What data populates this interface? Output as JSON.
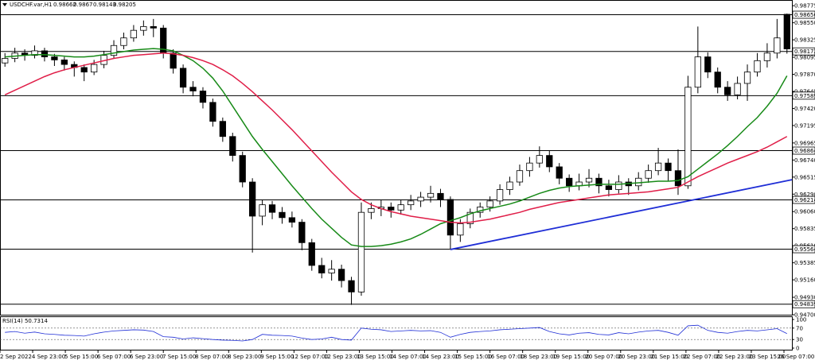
{
  "chart_data": {
    "type": "candlestick",
    "symbol": "USDCHF.var,H1",
    "candles": [
      [
        0.9802,
        0.9815,
        0.9797,
        0.9808
      ],
      [
        0.9808,
        0.9822,
        0.9803,
        0.9815
      ],
      [
        0.9815,
        0.982,
        0.9805,
        0.9812
      ],
      [
        0.9812,
        0.9825,
        0.9808,
        0.9818
      ],
      [
        0.9818,
        0.9822,
        0.9804,
        0.981
      ],
      [
        0.981,
        0.9814,
        0.9798,
        0.9806
      ],
      [
        0.9806,
        0.981,
        0.9792,
        0.98
      ],
      [
        0.98,
        0.9804,
        0.9784,
        0.9796
      ],
      [
        0.9796,
        0.98,
        0.9778,
        0.979
      ],
      [
        0.979,
        0.9806,
        0.9786,
        0.98
      ],
      [
        0.98,
        0.9818,
        0.9795,
        0.9812
      ],
      [
        0.9812,
        0.9832,
        0.9808,
        0.9825
      ],
      [
        0.9825,
        0.9842,
        0.982,
        0.9835
      ],
      [
        0.9835,
        0.9852,
        0.983,
        0.9845
      ],
      [
        0.9845,
        0.9858,
        0.9838,
        0.985
      ],
      [
        0.985,
        0.986,
        0.9836,
        0.9848
      ],
      [
        0.9848,
        0.9852,
        0.9808,
        0.9815
      ],
      [
        0.9815,
        0.982,
        0.9788,
        0.9795
      ],
      [
        0.9795,
        0.98,
        0.9762,
        0.977
      ],
      [
        0.977,
        0.9778,
        0.9758,
        0.9765
      ],
      [
        0.9765,
        0.977,
        0.9742,
        0.975
      ],
      [
        0.975,
        0.9755,
        0.9718,
        0.9725
      ],
      [
        0.9725,
        0.973,
        0.9698,
        0.9705
      ],
      [
        0.9705,
        0.971,
        0.9672,
        0.968
      ],
      [
        0.968,
        0.9685,
        0.9638,
        0.9645
      ],
      [
        0.9645,
        0.965,
        0.9552,
        0.96
      ],
      [
        0.96,
        0.9622,
        0.9588,
        0.9615
      ],
      [
        0.9615,
        0.962,
        0.9596,
        0.9605
      ],
      [
        0.9605,
        0.9612,
        0.959,
        0.9598
      ],
      [
        0.9598,
        0.9606,
        0.9585,
        0.9592
      ],
      [
        0.9592,
        0.9596,
        0.9555,
        0.9565
      ],
      [
        0.9565,
        0.957,
        0.9528,
        0.9535
      ],
      [
        0.9535,
        0.9545,
        0.9518,
        0.9525
      ],
      [
        0.9525,
        0.9542,
        0.9515,
        0.953
      ],
      [
        0.953,
        0.9536,
        0.9506,
        0.9515
      ],
      [
        0.9515,
        0.952,
        0.9483,
        0.95
      ],
      [
        0.95,
        0.9618,
        0.9495,
        0.9605
      ],
      [
        0.9605,
        0.9618,
        0.9596,
        0.961
      ],
      [
        0.961,
        0.9622,
        0.96,
        0.9612
      ],
      [
        0.9612,
        0.9618,
        0.9598,
        0.9608
      ],
      [
        0.9608,
        0.9622,
        0.9602,
        0.9615
      ],
      [
        0.9615,
        0.9628,
        0.9608,
        0.962
      ],
      [
        0.962,
        0.9632,
        0.9612,
        0.9625
      ],
      [
        0.9625,
        0.964,
        0.9618,
        0.963
      ],
      [
        0.963,
        0.9636,
        0.9612,
        0.9622
      ],
      [
        0.9622,
        0.9626,
        0.9556,
        0.9575
      ],
      [
        0.9575,
        0.9596,
        0.9566,
        0.959
      ],
      [
        0.959,
        0.961,
        0.9584,
        0.9605
      ],
      [
        0.9605,
        0.9618,
        0.9598,
        0.9612
      ],
      [
        0.9612,
        0.9626,
        0.9606,
        0.962
      ],
      [
        0.962,
        0.9642,
        0.9615,
        0.9635
      ],
      [
        0.9635,
        0.9652,
        0.9628,
        0.9645
      ],
      [
        0.9645,
        0.9668,
        0.964,
        0.966
      ],
      [
        0.966,
        0.9678,
        0.9652,
        0.967
      ],
      [
        0.967,
        0.9692,
        0.9664,
        0.968
      ],
      [
        0.968,
        0.9686,
        0.9658,
        0.9665
      ],
      [
        0.9665,
        0.967,
        0.9642,
        0.965
      ],
      [
        0.965,
        0.9655,
        0.9632,
        0.964
      ],
      [
        0.964,
        0.9656,
        0.9634,
        0.9645
      ],
      [
        0.9645,
        0.9662,
        0.9638,
        0.965
      ],
      [
        0.965,
        0.9656,
        0.963,
        0.964
      ],
      [
        0.964,
        0.9648,
        0.9626,
        0.9635
      ],
      [
        0.9635,
        0.9654,
        0.963,
        0.9645
      ],
      [
        0.9645,
        0.965,
        0.9628,
        0.964
      ],
      [
        0.964,
        0.9658,
        0.9634,
        0.965
      ],
      [
        0.965,
        0.9668,
        0.9644,
        0.966
      ],
      [
        0.966,
        0.969,
        0.9654,
        0.967
      ],
      [
        0.967,
        0.9676,
        0.9646,
        0.966
      ],
      [
        0.966,
        0.9688,
        0.9628,
        0.964
      ],
      [
        0.964,
        0.9785,
        0.9636,
        0.977
      ],
      [
        0.977,
        0.985,
        0.9762,
        0.981
      ],
      [
        0.981,
        0.9816,
        0.9782,
        0.979
      ],
      [
        0.979,
        0.9796,
        0.9762,
        0.977
      ],
      [
        0.977,
        0.9778,
        0.9752,
        0.976
      ],
      [
        0.976,
        0.9784,
        0.9754,
        0.9775
      ],
      [
        0.9775,
        0.98,
        0.9752,
        0.979
      ],
      [
        0.979,
        0.9815,
        0.9784,
        0.9805
      ],
      [
        0.9805,
        0.9828,
        0.9796,
        0.9815
      ],
      [
        0.9815,
        0.986,
        0.9808,
        0.9835
      ],
      [
        0.98662,
        0.9867,
        0.98143,
        0.98205
      ]
    ],
    "ylim": [
      0.947,
      0.9885
    ],
    "yticks": [
      {
        "value": 0.98775,
        "label": "0.98775"
      },
      {
        "value": 0.9855,
        "label": "0.98550"
      },
      {
        "value": 0.98325,
        "label": "0.98325"
      },
      {
        "value": 0.98095,
        "label": "0.98095"
      },
      {
        "value": 0.9787,
        "label": "0.97870"
      },
      {
        "value": 0.97645,
        "label": "0.97645"
      },
      {
        "value": 0.9742,
        "label": "0.97420"
      },
      {
        "value": 0.97195,
        "label": "0.97195"
      },
      {
        "value": 0.96965,
        "label": "0.96965"
      },
      {
        "value": 0.9674,
        "label": "0.96740"
      },
      {
        "value": 0.96515,
        "label": "0.96515"
      },
      {
        "value": 0.9629,
        "label": "0.96290"
      },
      {
        "value": 0.9606,
        "label": "0.96060"
      },
      {
        "value": 0.95835,
        "label": "0.95835"
      },
      {
        "value": 0.9561,
        "label": "0.95610"
      },
      {
        "value": 0.95385,
        "label": "0.95385"
      },
      {
        "value": 0.9516,
        "label": "0.95160"
      },
      {
        "value": 0.9493,
        "label": "0.94930"
      },
      {
        "value": 0.947,
        "label": "0.94700"
      }
    ],
    "levels": [
      0.98656,
      0.98172,
      0.97589,
      0.96864,
      0.96214,
      0.95564,
      0.94839
    ],
    "moving_averages": [
      {
        "color": "#178a17",
        "values": [
          0.981,
          0.9811,
          0.9812,
          0.9813,
          0.9813,
          0.9812,
          0.9811,
          0.981,
          0.981,
          0.9811,
          0.9813,
          0.9815,
          0.9817,
          0.9819,
          0.982,
          0.9821,
          0.982,
          0.9818,
          0.9812,
          0.9805,
          0.9795,
          0.9782,
          0.9765,
          0.9745,
          0.9725,
          0.9705,
          0.9688,
          0.9672,
          0.9656,
          0.964,
          0.9625,
          0.961,
          0.9596,
          0.9584,
          0.9572,
          0.9562,
          0.956,
          0.956,
          0.9561,
          0.9563,
          0.9566,
          0.957,
          0.9576,
          0.9583,
          0.959,
          0.9594,
          0.9598,
          0.9603,
          0.9607,
          0.961,
          0.9613,
          0.9616,
          0.962,
          0.9625,
          0.963,
          0.9634,
          0.9637,
          0.9639,
          0.964,
          0.9641,
          0.9642,
          0.9642,
          0.9642,
          0.9643,
          0.9644,
          0.9645,
          0.9646,
          0.9646,
          0.9647,
          0.9652,
          0.9662,
          0.9672,
          0.9682,
          0.9693,
          0.9705,
          0.9718,
          0.973,
          0.9745,
          0.9762,
          0.9785
        ]
      },
      {
        "color": "#e01e48",
        "values": [
          0.976,
          0.9766,
          0.9772,
          0.9778,
          0.9784,
          0.9789,
          0.9793,
          0.9796,
          0.9799,
          0.9802,
          0.9805,
          0.9808,
          0.981,
          0.9812,
          0.9813,
          0.9814,
          0.9815,
          0.9814,
          0.9812,
          0.9809,
          0.9805,
          0.98,
          0.9793,
          0.9785,
          0.9775,
          0.9764,
          0.9752,
          0.974,
          0.9727,
          0.9714,
          0.97,
          0.9686,
          0.9672,
          0.9658,
          0.9645,
          0.9632,
          0.9622,
          0.9615,
          0.961,
          0.9606,
          0.9603,
          0.96,
          0.9598,
          0.9596,
          0.9594,
          0.9592,
          0.9591,
          0.9592,
          0.9594,
          0.9596,
          0.9599,
          0.9602,
          0.9605,
          0.9609,
          0.9612,
          0.9615,
          0.9618,
          0.962,
          0.9622,
          0.9624,
          0.9626,
          0.9628,
          0.9629,
          0.963,
          0.9631,
          0.9632,
          0.9634,
          0.9636,
          0.9638,
          0.9645,
          0.9652,
          0.9658,
          0.9664,
          0.967,
          0.9675,
          0.968,
          0.9685,
          0.9691,
          0.9698,
          0.9705
        ]
      }
    ],
    "trendline": {
      "color": "#1f2ed6",
      "start": {
        "index": 45,
        "price": 0.9556
      },
      "end": {
        "index": 81.5,
        "price": 0.9648
      }
    },
    "x_labels": [
      "2 Sep 2022",
      "4 Sep 23:00",
      "5 Sep 15:00",
      "6 Sep 07:00",
      "6 Sep 23:00",
      "7 Sep 15:00",
      "8 Sep 07:00",
      "8 Sep 23:00",
      "9 Sep 15:00",
      "12 Sep 07:00",
      "12 Sep 23:00",
      "13 Sep 15:00",
      "14 Sep 07:00",
      "14 Sep 23:00",
      "15 Sep 15:00",
      "16 Sep 07:00",
      "18 Sep 23:00",
      "19 Sep 15:00",
      "20 Sep 07:00",
      "20 Sep 23:00",
      "21 Sep 15:00",
      "22 Sep 07:00",
      "22 Sep 23:00",
      "23 Sep 15:00",
      "26 Sep 07:00"
    ],
    "rsi": {
      "label": "RSI(14) 50.7314",
      "color": "#1f2ed6",
      "values": [
        55,
        58,
        52,
        56,
        50,
        48,
        45,
        44,
        42,
        50,
        56,
        60,
        62,
        64,
        63,
        58,
        40,
        38,
        32,
        36,
        33,
        30,
        28,
        27,
        25,
        30,
        48,
        45,
        44,
        42,
        35,
        30,
        32,
        38,
        30,
        28,
        70,
        66,
        64,
        58,
        60,
        62,
        60,
        61,
        55,
        38,
        48,
        55,
        58,
        60,
        64,
        66,
        68,
        70,
        72,
        58,
        50,
        46,
        52,
        54,
        48,
        46,
        54,
        50,
        56,
        60,
        62,
        55,
        45,
        78,
        80,
        62,
        55,
        52,
        58,
        62,
        60,
        64,
        68,
        50.7314
      ],
      "ylim": [
        0,
        100
      ],
      "yticks": [
        100,
        70,
        30,
        0
      ],
      "levels": [
        70,
        30
      ]
    }
  }
}
